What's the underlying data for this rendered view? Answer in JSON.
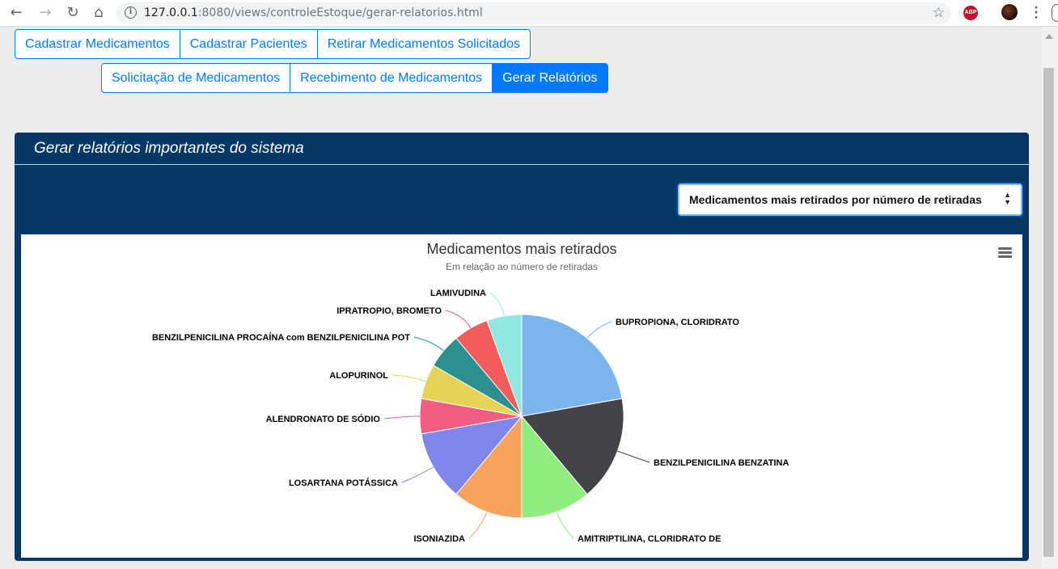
{
  "browser": {
    "url_host": "127.0.0.1",
    "url_rest": ":8080/views/controleEstoque/gerar-relatorios.html",
    "abp_label": "ABP"
  },
  "nav_row1": [
    {
      "label": "Cadastrar Medicamentos",
      "active": false
    },
    {
      "label": "Cadastrar Pacientes",
      "active": false
    },
    {
      "label": "Retirar Medicamentos Solicitados",
      "active": false
    }
  ],
  "nav_row2": [
    {
      "label": "Solicitação de Medicamentos",
      "active": false
    },
    {
      "label": "Recebimento de Medicamentos",
      "active": false
    },
    {
      "label": "Gerar Relatórios",
      "active": true
    }
  ],
  "card": {
    "title": "Gerar relatórios importantes do sistema",
    "select_value": "Medicamentos mais retirados por número de retiradas"
  },
  "chart_data": {
    "type": "pie",
    "title": "Medicamentos mais retirados",
    "subtitle": "Em relação ao número de retiradas",
    "slices": [
      {
        "name": "BUPROPIONA, CLORIDRATO",
        "value": 22.0,
        "color": "#7cb5ec"
      },
      {
        "name": "BENZILPENICILINA BENZATINA",
        "value": 16.5,
        "color": "#434348"
      },
      {
        "name": "AMITRIPTILINA, CLORIDRATO DE",
        "value": 11.0,
        "color": "#90ed7d"
      },
      {
        "name": "ISONIAZIDA",
        "value": 11.0,
        "color": "#f7a35c"
      },
      {
        "name": "LOSARTANA POTÁSSICA",
        "value": 11.0,
        "color": "#8085e9"
      },
      {
        "name": "ALENDRONATO DE SÓDIO",
        "value": 5.5,
        "color": "#f15c80"
      },
      {
        "name": "ALOPURINOL",
        "value": 5.5,
        "color": "#e4d354"
      },
      {
        "name": "BENZILPENICILINA PROCAÍNA com BENZILPENICILINA POT",
        "value": 5.5,
        "color": "#2b908f"
      },
      {
        "name": "IPRATROPIO, BROMETO",
        "value": 5.5,
        "color": "#f45b5b"
      },
      {
        "name": "LAMIVUDINA",
        "value": 5.5,
        "color": "#91e8e1"
      }
    ]
  }
}
